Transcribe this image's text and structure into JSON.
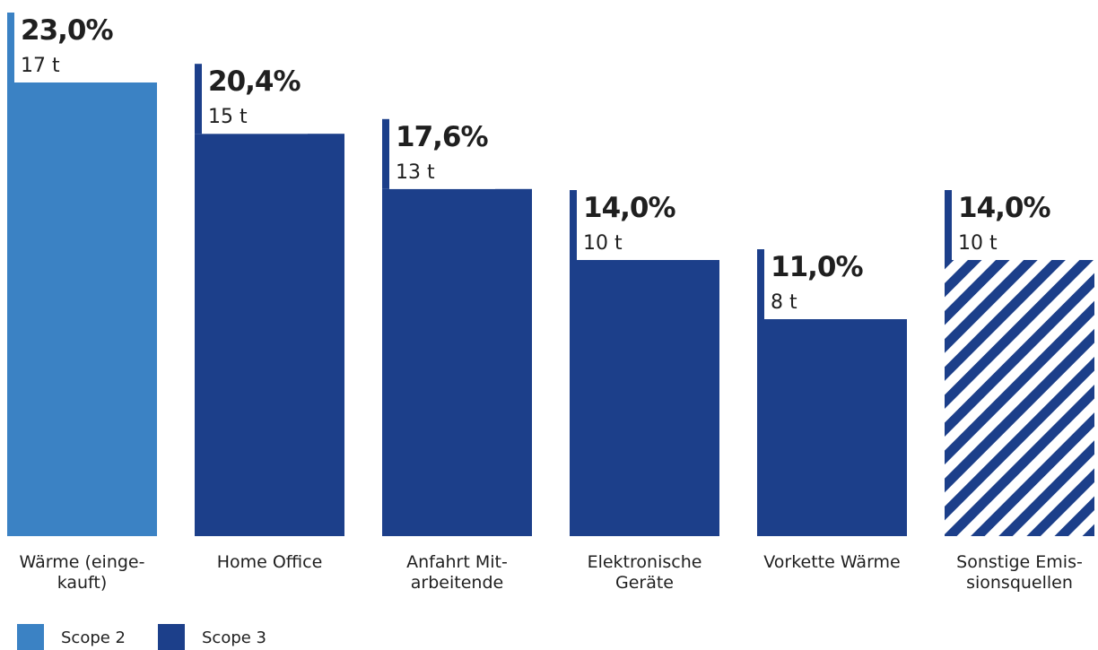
{
  "chart_data": {
    "type": "bar",
    "categories": [
      [
        "Wärme (einge-",
        "kauft)"
      ],
      [
        "Home Office"
      ],
      [
        "Anfahrt Mit-",
        "arbeitende"
      ],
      [
        "Elektronische",
        "Geräte"
      ],
      [
        "Vorkette Wärme"
      ],
      [
        "Sonstige Emis-",
        "sionsquellen"
      ]
    ],
    "values": [
      23.0,
      20.4,
      17.6,
      14.0,
      11.0,
      14.0
    ],
    "percent_labels": [
      "23,0%",
      "20,4%",
      "17,6%",
      "14,0%",
      "11,0%",
      "14,0%"
    ],
    "amount_labels": [
      "17 t",
      "15 t",
      "13 t",
      "10 t",
      "8 t",
      "10 t"
    ],
    "scope": [
      "Scope 2",
      "Scope 3",
      "Scope 3",
      "Scope 3",
      "Scope 3",
      "Scope 3"
    ],
    "hatched": [
      false,
      false,
      false,
      false,
      false,
      true
    ],
    "ylim": [
      0,
      23
    ],
    "legend": [
      {
        "label": "Scope 2",
        "color": "#3b82c4"
      },
      {
        "label": "Scope 3",
        "color": "#1c3f8a"
      }
    ],
    "legend_position": "bottom-left",
    "grid": false
  }
}
